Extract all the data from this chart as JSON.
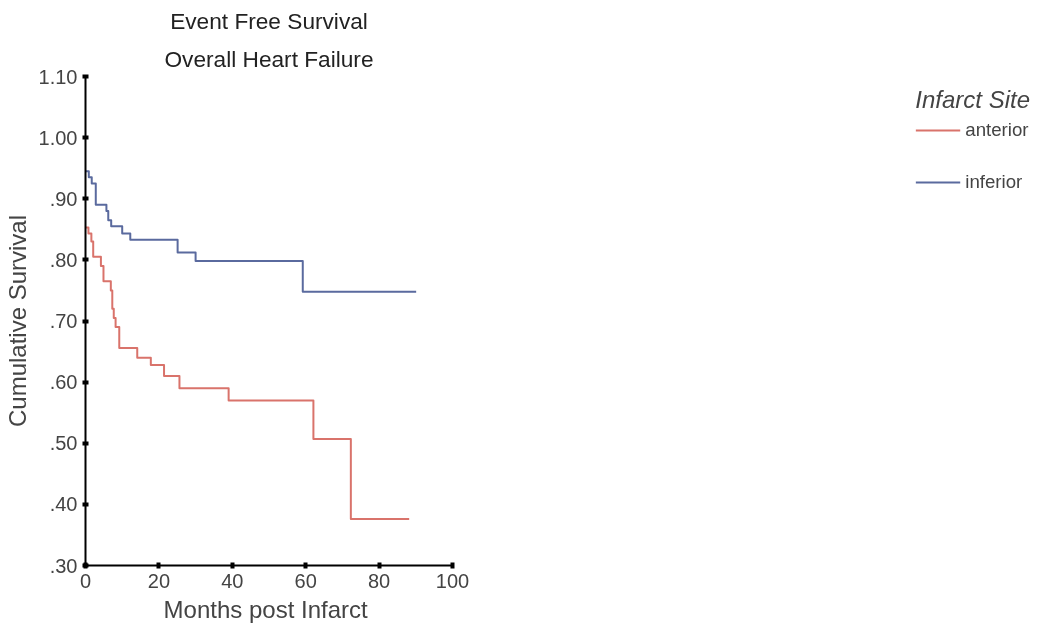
{
  "chart_data": {
    "type": "step",
    "title": "Event Free Survival",
    "subtitle": "Overall Heart Failure",
    "xlabel": "Months post  Infarct",
    "ylabel": "Cumulative Survival",
    "legend_title": "Infarct Site",
    "xlim": [
      0,
      100
    ],
    "xticks": [
      0,
      20,
      40,
      60,
      80,
      100
    ],
    "ylim": [
      0.3,
      1.1
    ],
    "yticks": [
      {
        "value": 0.3,
        "label": ".30"
      },
      {
        "value": 0.4,
        "label": ".40"
      },
      {
        "value": 0.5,
        "label": ".50"
      },
      {
        "value": 0.6,
        "label": ".60"
      },
      {
        "value": 0.7,
        "label": ".70"
      },
      {
        "value": 0.8,
        "label": ".80"
      },
      {
        "value": 0.9,
        "label": ".90"
      },
      {
        "value": 1.0,
        "label": "1.00"
      },
      {
        "value": 1.1,
        "label": "1.10"
      }
    ],
    "grid": false,
    "legend": "right",
    "series": [
      {
        "name": "anterior",
        "color": "#d9736b",
        "x": [
          0,
          0.8,
          1.6,
          2.1,
          4.2,
          4.9,
          6.9,
          7.3,
          7.7,
          8.2,
          9.2,
          14.1,
          17.8,
          21.4,
          25.6,
          39.0,
          62.1,
          72.3,
          88.2
        ],
        "values": [
          0.853,
          0.843,
          0.83,
          0.805,
          0.79,
          0.765,
          0.75,
          0.72,
          0.705,
          0.69,
          0.656,
          0.64,
          0.628,
          0.61,
          0.59,
          0.57,
          0.507,
          0.376,
          0.376
        ]
      },
      {
        "name": "inferior",
        "color": "#5a6a9e",
        "x": [
          0,
          0.9,
          1.7,
          2.8,
          5.7,
          6.2,
          7.0,
          10.0,
          12.2,
          25.1,
          30.0,
          59.2,
          90.1
        ],
        "values": [
          0.945,
          0.935,
          0.925,
          0.89,
          0.88,
          0.865,
          0.855,
          0.843,
          0.833,
          0.812,
          0.798,
          0.748,
          0.748
        ]
      }
    ]
  }
}
